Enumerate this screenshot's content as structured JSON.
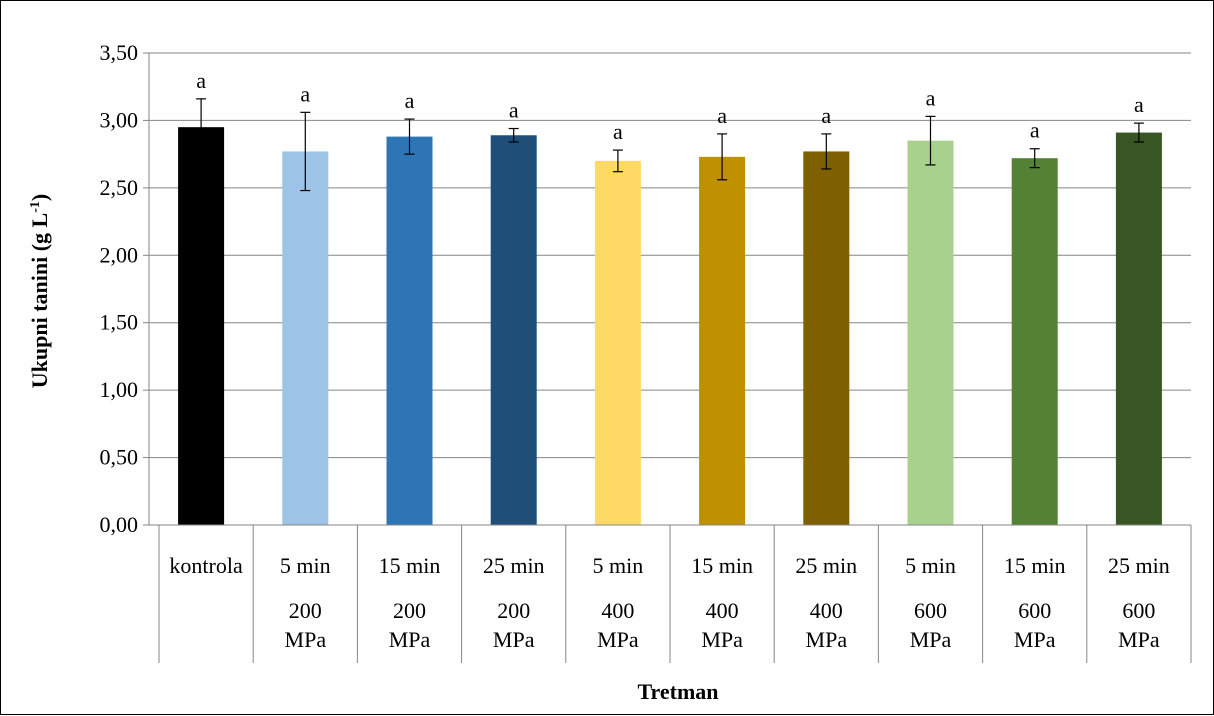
{
  "chart_data": {
    "type": "bar",
    "xlabel": "Tretman",
    "ylabel": "Ukupni tanini (g L",
    "ylabel_sup": "-1",
    "ylabel_close": ")",
    "ylim": [
      0,
      3.5
    ],
    "ytick_step": 0.5,
    "yticks": [
      "0,00",
      "0,50",
      "1,00",
      "1,50",
      "2,00",
      "2,50",
      "3,00",
      "3,50"
    ],
    "grid": true,
    "legend": "none",
    "categories": [
      {
        "time": "kontrola",
        "pressure": ""
      },
      {
        "time": "5 min",
        "pressure": "200 MPa"
      },
      {
        "time": "15 min",
        "pressure": "200 MPa"
      },
      {
        "time": "25 min",
        "pressure": "200 MPa"
      },
      {
        "time": "5 min",
        "pressure": "400 MPa"
      },
      {
        "time": "15 min",
        "pressure": "400 MPa"
      },
      {
        "time": "25 min",
        "pressure": "400 MPa"
      },
      {
        "time": "5 min",
        "pressure": "600 MPa"
      },
      {
        "time": "15 min",
        "pressure": "600 MPa"
      },
      {
        "time": "25 min",
        "pressure": "600 MPa"
      }
    ],
    "values": [
      2.95,
      2.77,
      2.88,
      2.89,
      2.7,
      2.73,
      2.77,
      2.85,
      2.72,
      2.91
    ],
    "errors": [
      0.21,
      0.29,
      0.13,
      0.05,
      0.08,
      0.17,
      0.13,
      0.18,
      0.07,
      0.07
    ],
    "significance": [
      "a",
      "a",
      "a",
      "a",
      "a",
      "a",
      "a",
      "a",
      "a",
      "a"
    ],
    "colors": [
      "#000000",
      "#9dc3e6",
      "#2e75b6",
      "#1f4e79",
      "#ffd966",
      "#bf9000",
      "#7f6000",
      "#a9d18e",
      "#548235",
      "#375623"
    ]
  }
}
